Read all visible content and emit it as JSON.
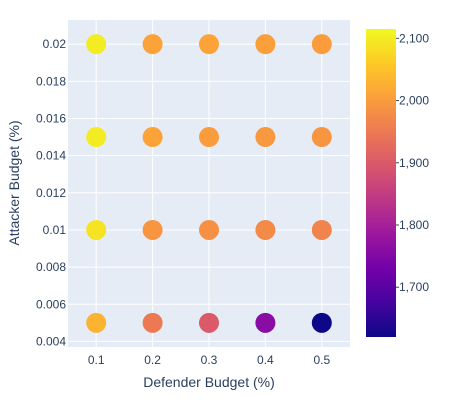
{
  "chart_data": {
    "type": "scatter",
    "xlabel": "Defender Budget (%)",
    "ylabel": "Attacker Budget (%)",
    "x_ticks": [
      "0.1",
      "0.2",
      "0.3",
      "0.4",
      "0.5"
    ],
    "y_ticks": [
      "0.004",
      "0.006",
      "0.008",
      "0.01",
      "0.012",
      "0.014",
      "0.016",
      "0.018",
      "0.02"
    ],
    "xlim": [
      0.05,
      0.55
    ],
    "ylim": [
      0.0037,
      0.0213
    ],
    "colorbar": {
      "range": [
        1620,
        2115
      ],
      "ticks": [
        "1,700",
        "1,800",
        "1,900",
        "2,000",
        "2,100"
      ],
      "colorscale": [
        "#0d0887",
        "#46039f",
        "#7201a8",
        "#9c179e",
        "#bd3786",
        "#d8576b",
        "#ed7953",
        "#fb9f3a",
        "#fdca26",
        "#f0f921"
      ]
    },
    "points": [
      {
        "x": 0.1,
        "y": 0.02,
        "value": 2100
      },
      {
        "x": 0.2,
        "y": 0.02,
        "value": 2010
      },
      {
        "x": 0.3,
        "y": 0.02,
        "value": 2010
      },
      {
        "x": 0.4,
        "y": 0.02,
        "value": 2005
      },
      {
        "x": 0.5,
        "y": 0.02,
        "value": 2000
      },
      {
        "x": 0.1,
        "y": 0.015,
        "value": 2100
      },
      {
        "x": 0.2,
        "y": 0.015,
        "value": 2010
      },
      {
        "x": 0.3,
        "y": 0.015,
        "value": 2000
      },
      {
        "x": 0.4,
        "y": 0.015,
        "value": 1995
      },
      {
        "x": 0.5,
        "y": 0.015,
        "value": 1990
      },
      {
        "x": 0.1,
        "y": 0.01,
        "value": 2090
      },
      {
        "x": 0.2,
        "y": 0.01,
        "value": 1990
      },
      {
        "x": 0.3,
        "y": 0.01,
        "value": 1985
      },
      {
        "x": 0.4,
        "y": 0.01,
        "value": 1975
      },
      {
        "x": 0.5,
        "y": 0.01,
        "value": 1965
      },
      {
        "x": 0.1,
        "y": 0.005,
        "value": 2030
      },
      {
        "x": 0.2,
        "y": 0.005,
        "value": 1950
      },
      {
        "x": 0.3,
        "y": 0.005,
        "value": 1900
      },
      {
        "x": 0.4,
        "y": 0.005,
        "value": 1760
      },
      {
        "x": 0.5,
        "y": 0.005,
        "value": 1620
      }
    ]
  }
}
